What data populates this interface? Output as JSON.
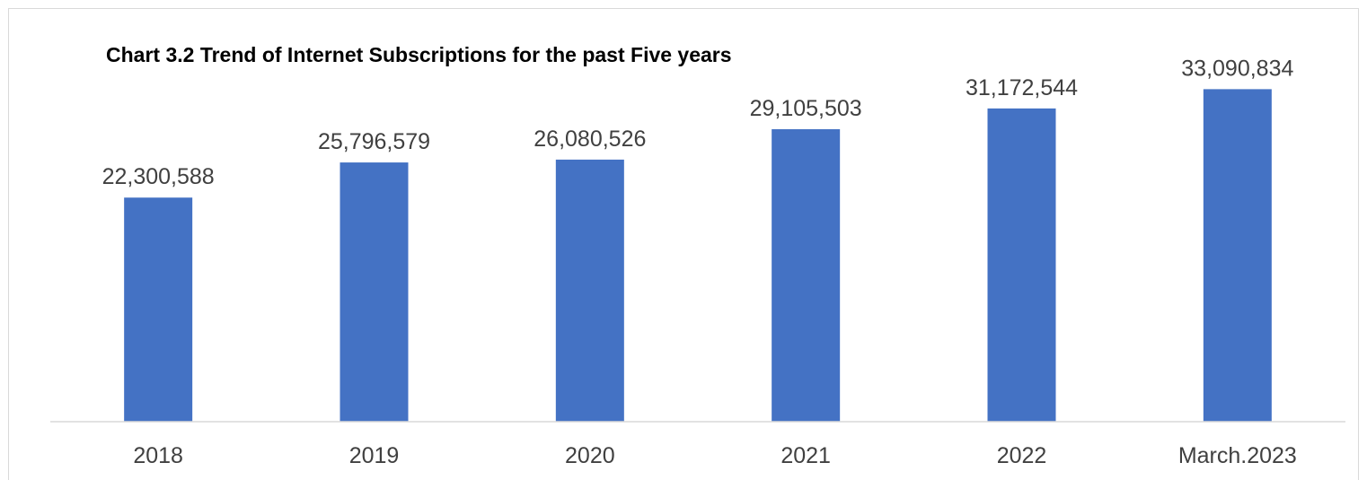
{
  "chart_data": {
    "type": "bar",
    "title": "Chart 3.2 Trend of Internet Subscriptions for the past Five years",
    "categories": [
      "2018",
      "2019",
      "2020",
      "2021",
      "2022",
      "March.2023"
    ],
    "values": [
      22300588,
      25796579,
      26080526,
      29105503,
      31172544,
      33090834
    ],
    "data_labels": [
      "22,300,588",
      "25,796,579",
      "26,080,526",
      "29,105,503",
      "31,172,544",
      "33,090,834"
    ],
    "xlabel": "",
    "ylabel": "",
    "ylim": [
      0,
      40000000
    ],
    "grid": false,
    "legend": "none",
    "bar_color": "#4472c4",
    "axis_color": "#d9d9d9",
    "label_color": "#404040"
  }
}
